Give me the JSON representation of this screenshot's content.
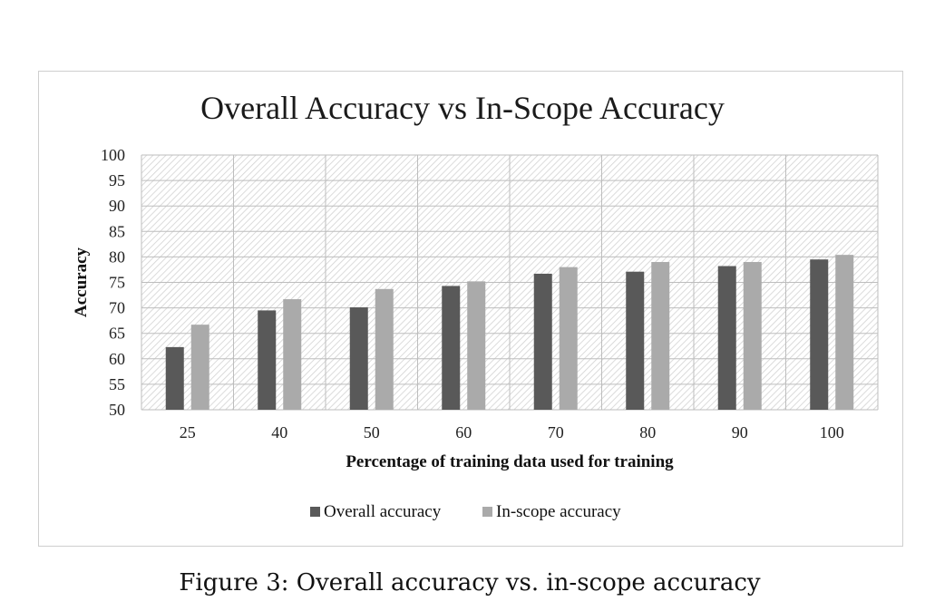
{
  "caption": "Figure 3: Overall accuracy vs. in-scope accuracy",
  "chart_data": {
    "type": "bar",
    "title": "Overall Accuracy vs In-Scope Accuracy",
    "xlabel": "Percentage of training data used for training",
    "ylabel": "Accuracy",
    "categories": [
      "25",
      "40",
      "50",
      "60",
      "70",
      "80",
      "90",
      "100"
    ],
    "ylim": [
      50,
      100
    ],
    "yticks": [
      "50",
      "55",
      "60",
      "65",
      "70",
      "75",
      "80",
      "85",
      "90",
      "95",
      "100"
    ],
    "grid": true,
    "legend_position": "bottom",
    "series": [
      {
        "name": "Overall accuracy",
        "color": "#595959",
        "values": [
          62.3,
          69.5,
          70.1,
          74.3,
          76.7,
          77.1,
          78.2,
          79.5
        ]
      },
      {
        "name": "In-scope accuracy",
        "color": "#aaaaaa",
        "values": [
          66.7,
          71.7,
          73.7,
          75.2,
          78.0,
          79.0,
          79.0,
          80.4
        ]
      }
    ]
  }
}
